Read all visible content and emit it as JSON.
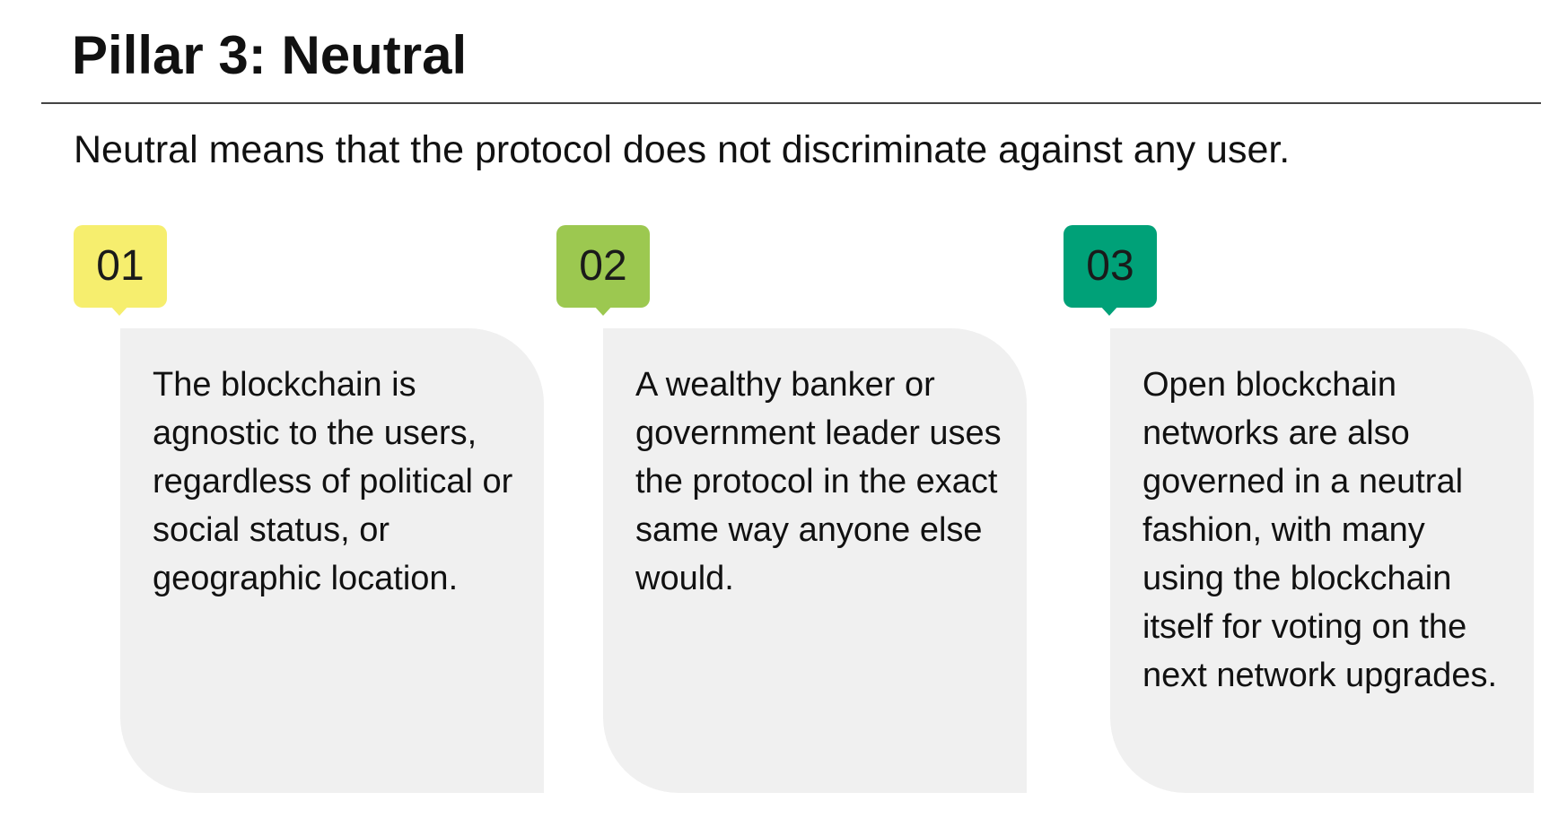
{
  "title": "Pillar 3: Neutral",
  "subtitle": "Neutral means that the protocol does not discriminate against any user.",
  "colors": {
    "badge_1": "#f6ee6e",
    "badge_2": "#9cc850",
    "badge_3": "#00a178",
    "card_background": "#f0f0f0"
  },
  "items": [
    {
      "number": "01",
      "text": "The blockchain is agnostic to the users, regardless of political or social status, or geographic location."
    },
    {
      "number": "02",
      "text": "A wealthy banker or government leader uses the protocol in the exact same way anyone else would."
    },
    {
      "number": "03",
      "text": "Open blockchain networks are also governed in a neutral fashion, with many using the blockchain itself for voting on the next network upgrades."
    }
  ]
}
